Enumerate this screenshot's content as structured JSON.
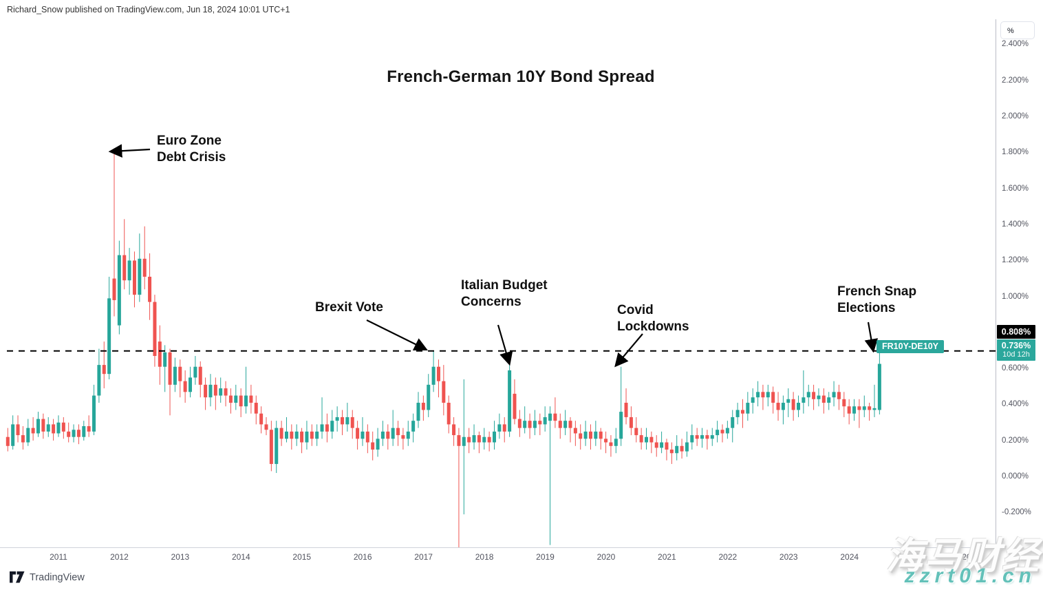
{
  "header": {
    "attribution": "Richard_Snow published on TradingView.com, Jun 18, 2024 10:01 UTC+1"
  },
  "chart": {
    "title": "French-German 10Y Bond Spread",
    "symbol_label": "FR10Y-DE10Y",
    "level_label": "0.808%",
    "price_label": "0.736%",
    "countdown_label": "10d 12h",
    "percent_button": "%"
  },
  "annotations": [
    {
      "lines": [
        "Euro Zone",
        "Debt Crisis"
      ]
    },
    {
      "lines": [
        "Brexit Vote"
      ]
    },
    {
      "lines": [
        "Italian Budget",
        "Concerns"
      ]
    },
    {
      "lines": [
        "Covid",
        "Lockdowns"
      ]
    },
    {
      "lines": [
        "French Snap",
        "Elections"
      ]
    }
  ],
  "y_axis": {
    "ticks": [
      {
        "label": "2.400%",
        "value": 2.4
      },
      {
        "label": "2.200%",
        "value": 2.2
      },
      {
        "label": "2.000%",
        "value": 2.0
      },
      {
        "label": "1.800%",
        "value": 1.8
      },
      {
        "label": "1.600%",
        "value": 1.6
      },
      {
        "label": "1.400%",
        "value": 1.4
      },
      {
        "label": "1.200%",
        "value": 1.2
      },
      {
        "label": "1.000%",
        "value": 1.0
      },
      {
        "label": "0.600%",
        "value": 0.6
      },
      {
        "label": "0.400%",
        "value": 0.4
      },
      {
        "label": "0.200%",
        "value": 0.2
      },
      {
        "label": "0.000%",
        "value": 0.0
      },
      {
        "label": "-0.200%",
        "value": -0.2
      }
    ]
  },
  "x_axis": {
    "years": [
      "2011",
      "2012",
      "2013",
      "2014",
      "2015",
      "2016",
      "2017",
      "2018",
      "2019",
      "2020",
      "2021",
      "2022",
      "2023",
      "2024",
      "2025",
      "2026"
    ]
  },
  "footer": {
    "brand": "TradingView"
  },
  "watermark": {
    "line1": "海马财经",
    "line2": "zzrt01.cn"
  },
  "colors": {
    "up": "#26a69a",
    "down": "#ef5350",
    "level_line": "#000000",
    "level_label_bg": "#000000",
    "price_label_bg": "#2ba79c"
  },
  "chart_data": {
    "type": "candlestick",
    "title": "French-German 10Y Bond Spread",
    "unit": "percent",
    "interval": "1M",
    "x_start": "2010-03",
    "x_end": "2024-06",
    "x_tick_years": [
      2011,
      2012,
      2013,
      2014,
      2015,
      2016,
      2017,
      2018,
      2019,
      2020,
      2021,
      2022,
      2023,
      2024,
      2025,
      2026
    ],
    "ylim": [
      -0.39,
      2.53
    ],
    "grid": false,
    "level_line_value": 0.808,
    "last_price": 0.736,
    "bar_countdown": "10d 12h",
    "annotations": [
      {
        "text": "Euro Zone Debt Crisis",
        "points_to": "2011-11",
        "value": 1.91
      },
      {
        "text": "Brexit Vote",
        "points_to": "2017-02",
        "value": 0.81
      },
      {
        "text": "Italian Budget Concerns",
        "points_to": "2018-05",
        "value": 0.76
      },
      {
        "text": "Covid Lockdowns",
        "points_to": "2020-03",
        "value": 0.72
      },
      {
        "text": "French Snap Elections",
        "points_to": "2024-06",
        "value": 0.807
      }
    ],
    "ohlc": [
      [
        0.33,
        0.38,
        0.25,
        0.28
      ],
      [
        0.28,
        0.45,
        0.26,
        0.4
      ],
      [
        0.4,
        0.45,
        0.3,
        0.34
      ],
      [
        0.34,
        0.39,
        0.26,
        0.3
      ],
      [
        0.3,
        0.43,
        0.28,
        0.38
      ],
      [
        0.38,
        0.44,
        0.31,
        0.35
      ],
      [
        0.35,
        0.47,
        0.33,
        0.43
      ],
      [
        0.43,
        0.46,
        0.32,
        0.36
      ],
      [
        0.36,
        0.44,
        0.33,
        0.4
      ],
      [
        0.4,
        0.43,
        0.31,
        0.35
      ],
      [
        0.35,
        0.45,
        0.33,
        0.41
      ],
      [
        0.41,
        0.44,
        0.32,
        0.36
      ],
      [
        0.36,
        0.41,
        0.3,
        0.33
      ],
      [
        0.33,
        0.4,
        0.3,
        0.37
      ],
      [
        0.37,
        0.4,
        0.29,
        0.33
      ],
      [
        0.33,
        0.42,
        0.31,
        0.39
      ],
      [
        0.39,
        0.45,
        0.33,
        0.36
      ],
      [
        0.36,
        0.62,
        0.34,
        0.56
      ],
      [
        0.56,
        0.82,
        0.52,
        0.73
      ],
      [
        0.73,
        0.86,
        0.6,
        0.68
      ],
      [
        0.68,
        1.22,
        0.65,
        1.1
      ],
      [
        1.21,
        1.91,
        1.0,
        1.09
      ],
      [
        0.95,
        1.42,
        0.9,
        1.34
      ],
      [
        1.34,
        1.54,
        1.15,
        1.2
      ],
      [
        1.2,
        1.38,
        1.12,
        1.31
      ],
      [
        1.31,
        1.36,
        1.05,
        1.12
      ],
      [
        1.12,
        1.46,
        1.08,
        1.32
      ],
      [
        1.32,
        1.5,
        1.15,
        1.22
      ],
      [
        1.22,
        1.35,
        0.98,
        1.08
      ],
      [
        1.08,
        1.12,
        0.72,
        0.78
      ],
      [
        0.86,
        0.95,
        0.62,
        0.72
      ],
      [
        0.72,
        0.84,
        0.58,
        0.8
      ],
      [
        0.8,
        0.82,
        0.45,
        0.62
      ],
      [
        0.62,
        0.77,
        0.58,
        0.72
      ],
      [
        0.72,
        0.76,
        0.55,
        0.64
      ],
      [
        0.64,
        0.7,
        0.52,
        0.58
      ],
      [
        0.58,
        0.72,
        0.55,
        0.66
      ],
      [
        0.66,
        0.78,
        0.62,
        0.72
      ],
      [
        0.72,
        0.75,
        0.55,
        0.62
      ],
      [
        0.62,
        0.66,
        0.48,
        0.55
      ],
      [
        0.55,
        0.68,
        0.5,
        0.62
      ],
      [
        0.62,
        0.66,
        0.48,
        0.56
      ],
      [
        0.56,
        0.66,
        0.52,
        0.6
      ],
      [
        0.6,
        0.64,
        0.5,
        0.56
      ],
      [
        0.56,
        0.6,
        0.46,
        0.52
      ],
      [
        0.52,
        0.62,
        0.48,
        0.56
      ],
      [
        0.56,
        0.6,
        0.44,
        0.5
      ],
      [
        0.5,
        0.72,
        0.46,
        0.56
      ],
      [
        0.56,
        0.62,
        0.46,
        0.52
      ],
      [
        0.52,
        0.56,
        0.4,
        0.46
      ],
      [
        0.46,
        0.5,
        0.35,
        0.4
      ],
      [
        0.4,
        0.44,
        0.34,
        0.37
      ],
      [
        0.37,
        0.42,
        0.14,
        0.18
      ],
      [
        0.18,
        0.42,
        0.13,
        0.38
      ],
      [
        0.38,
        0.42,
        0.28,
        0.32
      ],
      [
        0.32,
        0.44,
        0.3,
        0.36
      ],
      [
        0.36,
        0.4,
        0.26,
        0.32
      ],
      [
        0.32,
        0.4,
        0.28,
        0.36
      ],
      [
        0.36,
        0.38,
        0.24,
        0.3
      ],
      [
        0.3,
        0.42,
        0.26,
        0.36
      ],
      [
        0.36,
        0.4,
        0.28,
        0.32
      ],
      [
        0.32,
        0.4,
        0.28,
        0.36
      ],
      [
        0.36,
        0.55,
        0.32,
        0.4
      ],
      [
        0.4,
        0.46,
        0.3,
        0.36
      ],
      [
        0.36,
        0.48,
        0.32,
        0.42
      ],
      [
        0.42,
        0.5,
        0.36,
        0.44
      ],
      [
        0.44,
        0.48,
        0.34,
        0.4
      ],
      [
        0.4,
        0.52,
        0.36,
        0.44
      ],
      [
        0.44,
        0.48,
        0.32,
        0.38
      ],
      [
        0.38,
        0.42,
        0.26,
        0.32
      ],
      [
        0.32,
        0.44,
        0.28,
        0.36
      ],
      [
        0.36,
        0.4,
        0.24,
        0.3
      ],
      [
        0.3,
        0.36,
        0.2,
        0.26
      ],
      [
        0.26,
        0.38,
        0.22,
        0.32
      ],
      [
        0.32,
        0.42,
        0.28,
        0.36
      ],
      [
        0.36,
        0.4,
        0.26,
        0.32
      ],
      [
        0.32,
        0.48,
        0.28,
        0.38
      ],
      [
        0.38,
        0.42,
        0.28,
        0.34
      ],
      [
        0.34,
        0.38,
        0.26,
        0.32
      ],
      [
        0.32,
        0.42,
        0.28,
        0.36
      ],
      [
        0.36,
        0.46,
        0.3,
        0.42
      ],
      [
        0.42,
        0.58,
        0.38,
        0.52
      ],
      [
        0.52,
        0.56,
        0.42,
        0.48
      ],
      [
        0.48,
        0.68,
        0.44,
        0.62
      ],
      [
        0.62,
        0.81,
        0.58,
        0.72
      ],
      [
        0.72,
        0.76,
        0.55,
        0.64
      ],
      [
        0.64,
        0.73,
        0.45,
        0.52
      ],
      [
        0.52,
        0.56,
        0.35,
        0.4
      ],
      [
        0.4,
        0.44,
        0.28,
        0.34
      ],
      [
        0.34,
        0.38,
        -0.38,
        0.28
      ],
      [
        0.28,
        0.65,
        -0.1,
        0.33
      ],
      [
        0.33,
        0.38,
        0.24,
        0.3
      ],
      [
        0.3,
        0.4,
        0.26,
        0.34
      ],
      [
        0.34,
        0.36,
        0.24,
        0.3
      ],
      [
        0.3,
        0.38,
        0.26,
        0.33
      ],
      [
        0.33,
        0.36,
        0.25,
        0.3
      ],
      [
        0.3,
        0.42,
        0.26,
        0.36
      ],
      [
        0.36,
        0.46,
        0.32,
        0.4
      ],
      [
        0.4,
        0.44,
        0.3,
        0.36
      ],
      [
        0.36,
        0.76,
        0.33,
        0.7
      ],
      [
        0.57,
        0.65,
        0.4,
        0.43
      ],
      [
        0.43,
        0.48,
        0.33,
        0.38
      ],
      [
        0.38,
        0.5,
        0.35,
        0.42
      ],
      [
        0.42,
        0.46,
        0.32,
        0.38
      ],
      [
        0.38,
        0.48,
        0.34,
        0.42
      ],
      [
        0.42,
        0.46,
        0.34,
        0.4
      ],
      [
        0.4,
        0.5,
        0.36,
        0.44
      ],
      [
        0.42,
        0.5,
        -0.27,
        0.46
      ],
      [
        0.46,
        0.55,
        0.38,
        0.42
      ],
      [
        0.42,
        0.46,
        0.32,
        0.38
      ],
      [
        0.38,
        0.48,
        0.34,
        0.42
      ],
      [
        0.42,
        0.44,
        0.3,
        0.38
      ],
      [
        0.38,
        0.42,
        0.28,
        0.35
      ],
      [
        0.35,
        0.4,
        0.26,
        0.32
      ],
      [
        0.32,
        0.42,
        0.28,
        0.36
      ],
      [
        0.36,
        0.4,
        0.26,
        0.32
      ],
      [
        0.32,
        0.42,
        0.28,
        0.36
      ],
      [
        0.36,
        0.38,
        0.26,
        0.32
      ],
      [
        0.32,
        0.36,
        0.24,
        0.3
      ],
      [
        0.3,
        0.34,
        0.22,
        0.28
      ],
      [
        0.28,
        0.38,
        0.24,
        0.32
      ],
      [
        0.32,
        0.72,
        0.28,
        0.47
      ],
      [
        0.52,
        0.6,
        0.4,
        0.44
      ],
      [
        0.44,
        0.5,
        0.34,
        0.38
      ],
      [
        0.38,
        0.44,
        0.3,
        0.34
      ],
      [
        0.34,
        0.38,
        0.26,
        0.3
      ],
      [
        0.3,
        0.38,
        0.26,
        0.33
      ],
      [
        0.33,
        0.36,
        0.24,
        0.3
      ],
      [
        0.3,
        0.34,
        0.22,
        0.27
      ],
      [
        0.27,
        0.36,
        0.24,
        0.3
      ],
      [
        0.3,
        0.32,
        0.2,
        0.26
      ],
      [
        0.26,
        0.3,
        0.18,
        0.24
      ],
      [
        0.24,
        0.34,
        0.2,
        0.28
      ],
      [
        0.28,
        0.32,
        0.21,
        0.25
      ],
      [
        0.25,
        0.36,
        0.22,
        0.3
      ],
      [
        0.3,
        0.4,
        0.26,
        0.34
      ],
      [
        0.34,
        0.38,
        0.28,
        0.32
      ],
      [
        0.32,
        0.38,
        0.27,
        0.34
      ],
      [
        0.34,
        0.37,
        0.26,
        0.32
      ],
      [
        0.32,
        0.38,
        0.28,
        0.34
      ],
      [
        0.34,
        0.42,
        0.3,
        0.37
      ],
      [
        0.37,
        0.4,
        0.3,
        0.35
      ],
      [
        0.35,
        0.42,
        0.32,
        0.38
      ],
      [
        0.38,
        0.48,
        0.3,
        0.44
      ],
      [
        0.44,
        0.52,
        0.4,
        0.48
      ],
      [
        0.48,
        0.54,
        0.38,
        0.46
      ],
      [
        0.46,
        0.58,
        0.42,
        0.52
      ],
      [
        0.52,
        0.6,
        0.46,
        0.55
      ],
      [
        0.55,
        0.64,
        0.5,
        0.58
      ],
      [
        0.58,
        0.62,
        0.48,
        0.55
      ],
      [
        0.55,
        0.62,
        0.5,
        0.58
      ],
      [
        0.58,
        0.61,
        0.46,
        0.52
      ],
      [
        0.52,
        0.58,
        0.42,
        0.48
      ],
      [
        0.48,
        0.56,
        0.4,
        0.52
      ],
      [
        0.52,
        0.6,
        0.44,
        0.54
      ],
      [
        0.54,
        0.58,
        0.42,
        0.48
      ],
      [
        0.48,
        0.56,
        0.44,
        0.52
      ],
      [
        0.52,
        0.7,
        0.46,
        0.55
      ],
      [
        0.55,
        0.62,
        0.5,
        0.58
      ],
      [
        0.58,
        0.62,
        0.48,
        0.54
      ],
      [
        0.54,
        0.6,
        0.5,
        0.56
      ],
      [
        0.56,
        0.6,
        0.46,
        0.52
      ],
      [
        0.52,
        0.58,
        0.48,
        0.55
      ],
      [
        0.55,
        0.64,
        0.5,
        0.58
      ],
      [
        0.58,
        0.62,
        0.48,
        0.54
      ],
      [
        0.54,
        0.58,
        0.44,
        0.5
      ],
      [
        0.5,
        0.54,
        0.4,
        0.46
      ],
      [
        0.46,
        0.54,
        0.42,
        0.5
      ],
      [
        0.5,
        0.54,
        0.38,
        0.48
      ],
      [
        0.48,
        0.56,
        0.44,
        0.5
      ],
      [
        0.5,
        0.52,
        0.42,
        0.48
      ],
      [
        0.48,
        0.62,
        0.44,
        0.49
      ],
      [
        0.48,
        0.807,
        0.455,
        0.736
      ]
    ]
  }
}
